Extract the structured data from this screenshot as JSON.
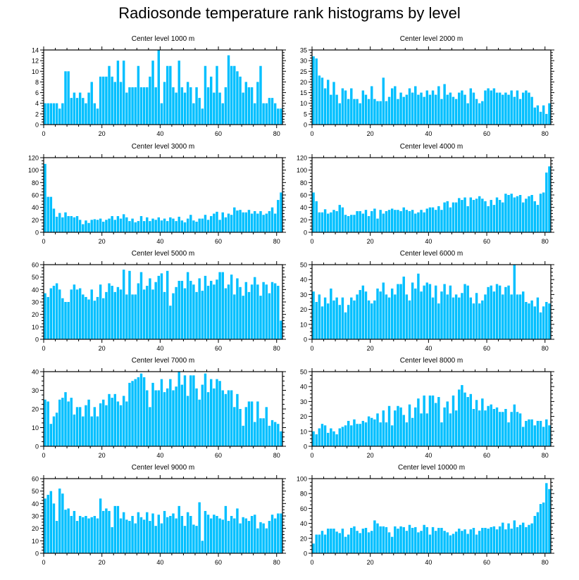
{
  "title": "Radiosonde temperature rank histograms by level",
  "colors": {
    "bar": "#00bfff",
    "frame": "#000000",
    "background": "#ffffff"
  },
  "chart_data": [
    {
      "type": "bar",
      "title": "Center level 1000 m",
      "xlim": [
        0,
        82
      ],
      "xticks": [
        0,
        20,
        40,
        60,
        80
      ],
      "ylim": [
        0,
        14
      ],
      "yticks": [
        0,
        2,
        4,
        6,
        8,
        10,
        12,
        14
      ],
      "values": [
        4,
        4,
        4,
        4,
        4,
        3,
        4,
        10,
        10,
        5,
        6,
        5,
        6,
        5,
        4,
        6,
        8,
        4,
        3,
        9,
        9,
        9,
        11,
        9,
        8,
        12,
        8,
        12,
        6,
        7,
        7,
        7,
        11,
        7,
        7,
        7,
        9,
        12,
        7,
        14,
        4,
        8,
        11,
        11,
        7,
        6,
        12,
        7,
        6,
        8,
        7,
        4,
        7,
        5,
        3,
        11,
        7,
        9,
        6,
        11,
        6,
        4,
        7,
        13,
        11,
        11,
        10,
        9,
        6,
        8,
        7,
        7,
        4,
        8,
        11,
        4,
        4,
        5,
        5,
        4,
        3,
        3
      ]
    },
    {
      "type": "bar",
      "title": "Center level 2000 m",
      "xlim": [
        0,
        82
      ],
      "xticks": [
        0,
        20,
        40,
        60,
        80
      ],
      "ylim": [
        0,
        35
      ],
      "yticks": [
        0,
        5,
        10,
        15,
        20,
        25,
        30,
        35
      ],
      "values": [
        32,
        31,
        23,
        22,
        17,
        21,
        14,
        20,
        14,
        10,
        17,
        16,
        12,
        17,
        12,
        12,
        10,
        16,
        14,
        12,
        18,
        12,
        11,
        11,
        22,
        11,
        13,
        17,
        18,
        12,
        15,
        13,
        14,
        17,
        15,
        18,
        14,
        15,
        13,
        16,
        14,
        16,
        14,
        18,
        12,
        19,
        14,
        15,
        13,
        12,
        15,
        16,
        14,
        10,
        17,
        15,
        12,
        10,
        11,
        16,
        17,
        16,
        17,
        15,
        15,
        14,
        15,
        14,
        16,
        13,
        16,
        12,
        15,
        16,
        15,
        13,
        8,
        9,
        6,
        9,
        5,
        10
      ]
    },
    {
      "type": "bar",
      "title": "Center level 3000 m",
      "xlim": [
        0,
        82
      ],
      "xticks": [
        0,
        20,
        40,
        60,
        80
      ],
      "ylim": [
        0,
        120
      ],
      "yticks": [
        0,
        20,
        40,
        60,
        80,
        100,
        120
      ],
      "values": [
        110,
        57,
        57,
        38,
        25,
        31,
        24,
        32,
        26,
        26,
        24,
        26,
        20,
        13,
        19,
        15,
        20,
        21,
        20,
        22,
        17,
        20,
        22,
        26,
        20,
        26,
        22,
        29,
        24,
        18,
        22,
        16,
        18,
        26,
        18,
        24,
        18,
        22,
        20,
        24,
        19,
        22,
        18,
        24,
        22,
        18,
        25,
        19,
        16,
        22,
        28,
        19,
        17,
        22,
        22,
        28,
        20,
        26,
        30,
        33,
        20,
        32,
        24,
        30,
        28,
        40,
        35,
        36,
        32,
        32,
        36,
        30,
        34,
        30,
        34,
        28,
        30,
        34,
        40,
        30,
        52,
        64
      ]
    },
    {
      "type": "bar",
      "title": "Center level 4000 m",
      "xlim": [
        0,
        82
      ],
      "xticks": [
        0,
        20,
        40,
        60,
        80
      ],
      "ylim": [
        0,
        120
      ],
      "yticks": [
        0,
        20,
        40,
        60,
        80,
        100,
        120
      ],
      "values": [
        64,
        50,
        32,
        32,
        37,
        30,
        32,
        36,
        34,
        44,
        40,
        28,
        26,
        28,
        28,
        34,
        34,
        30,
        36,
        26,
        34,
        38,
        22,
        36,
        30,
        34,
        36,
        38,
        36,
        36,
        34,
        40,
        36,
        34,
        36,
        30,
        32,
        36,
        32,
        38,
        40,
        40,
        36,
        42,
        36,
        48,
        50,
        40,
        48,
        48,
        55,
        52,
        56,
        42,
        56,
        52,
        54,
        58,
        54,
        50,
        42,
        52,
        44,
        56,
        52,
        48,
        62,
        60,
        62,
        56,
        58,
        60,
        48,
        54,
        58,
        60,
        50,
        44,
        62,
        64,
        96,
        106
      ]
    },
    {
      "type": "bar",
      "title": "Center level 5000 m",
      "xlim": [
        0,
        82
      ],
      "xticks": [
        0,
        20,
        40,
        60,
        80
      ],
      "ylim": [
        0,
        60
      ],
      "yticks": [
        0,
        10,
        20,
        30,
        40,
        50,
        60
      ],
      "values": [
        37,
        34,
        41,
        43,
        45,
        40,
        33,
        30,
        30,
        40,
        44,
        40,
        41,
        36,
        34,
        32,
        40,
        31,
        34,
        44,
        33,
        38,
        45,
        43,
        38,
        42,
        40,
        56,
        36,
        55,
        36,
        36,
        45,
        54,
        40,
        43,
        49,
        40,
        46,
        51,
        53,
        38,
        55,
        27,
        37,
        42,
        47,
        47,
        41,
        54,
        47,
        44,
        38,
        49,
        39,
        51,
        43,
        47,
        44,
        48,
        54,
        54,
        41,
        44,
        52,
        36,
        49,
        42,
        35,
        46,
        38,
        44,
        50,
        44,
        35,
        46,
        44,
        37,
        46,
        45,
        43,
        15
      ]
    },
    {
      "type": "bar",
      "title": "Center level 6000 m",
      "xlim": [
        0,
        82
      ],
      "xticks": [
        0,
        20,
        40,
        60,
        80
      ],
      "ylim": [
        0,
        50
      ],
      "yticks": [
        0,
        10,
        20,
        30,
        40,
        50
      ],
      "values": [
        32,
        25,
        30,
        22,
        28,
        24,
        34,
        26,
        28,
        23,
        28,
        18,
        23,
        28,
        26,
        30,
        33,
        36,
        32,
        26,
        24,
        26,
        34,
        32,
        38,
        30,
        28,
        34,
        30,
        37,
        37,
        42,
        30,
        26,
        38,
        34,
        44,
        32,
        36,
        38,
        37,
        28,
        36,
        24,
        32,
        37,
        30,
        36,
        28,
        30,
        28,
        31,
        37,
        36,
        28,
        24,
        31,
        24,
        26,
        30,
        35,
        36,
        32,
        37,
        36,
        30,
        35,
        36,
        30,
        50,
        30,
        30,
        32,
        25,
        24,
        26,
        22,
        28,
        18,
        22,
        25,
        24
      ]
    },
    {
      "type": "bar",
      "title": "Center level 7000 m",
      "xlim": [
        0,
        82
      ],
      "xticks": [
        0,
        20,
        40,
        60,
        80
      ],
      "ylim": [
        0,
        40
      ],
      "yticks": [
        0,
        10,
        20,
        30,
        40
      ],
      "values": [
        25,
        24,
        12,
        16,
        18,
        25,
        26,
        29,
        24,
        26,
        17,
        21,
        21,
        16,
        22,
        25,
        16,
        21,
        16,
        23,
        25,
        22,
        28,
        26,
        28,
        24,
        22,
        27,
        24,
        34,
        35,
        36,
        37,
        39,
        37,
        30,
        21,
        34,
        30,
        30,
        36,
        29,
        31,
        36,
        30,
        32,
        40,
        33,
        38,
        27,
        38,
        38,
        31,
        25,
        33,
        39,
        29,
        36,
        31,
        36,
        35,
        30,
        28,
        30,
        30,
        21,
        28,
        20,
        11,
        21,
        24,
        24,
        13,
        24,
        15,
        15,
        21,
        11,
        14,
        13,
        12,
        8
      ]
    },
    {
      "type": "bar",
      "title": "Center level 8000 m",
      "xlim": [
        0,
        82
      ],
      "xticks": [
        0,
        20,
        40,
        60,
        80
      ],
      "ylim": [
        0,
        50
      ],
      "yticks": [
        0,
        10,
        20,
        30,
        40,
        50
      ],
      "values": [
        10,
        8,
        12,
        15,
        14,
        9,
        12,
        10,
        8,
        12,
        13,
        14,
        17,
        14,
        18,
        15,
        15,
        17,
        16,
        20,
        19,
        18,
        22,
        16,
        24,
        16,
        27,
        14,
        24,
        27,
        26,
        21,
        16,
        28,
        19,
        26,
        32,
        22,
        34,
        22,
        34,
        34,
        29,
        33,
        16,
        26,
        30,
        22,
        34,
        24,
        38,
        41,
        36,
        33,
        35,
        25,
        31,
        24,
        32,
        24,
        27,
        28,
        25,
        26,
        23,
        23,
        25,
        16,
        23,
        28,
        23,
        22,
        13,
        17,
        18,
        18,
        14,
        17,
        17,
        13,
        18,
        14
      ]
    },
    {
      "type": "bar",
      "title": "Center level 9000 m",
      "xlim": [
        0,
        82
      ],
      "xticks": [
        0,
        20,
        40,
        60,
        80
      ],
      "ylim": [
        0,
        60
      ],
      "yticks": [
        0,
        10,
        20,
        30,
        40,
        50,
        60
      ],
      "values": [
        44,
        47,
        50,
        40,
        26,
        52,
        48,
        35,
        36,
        30,
        34,
        26,
        30,
        29,
        30,
        28,
        29,
        30,
        28,
        44,
        34,
        36,
        34,
        21,
        38,
        38,
        28,
        33,
        27,
        26,
        30,
        24,
        33,
        29,
        27,
        33,
        26,
        32,
        22,
        31,
        24,
        34,
        29,
        30,
        32,
        28,
        38,
        30,
        22,
        33,
        30,
        23,
        22,
        41,
        10,
        34,
        31,
        28,
        31,
        30,
        28,
        27,
        38,
        26,
        30,
        28,
        36,
        24,
        29,
        28,
        26,
        30,
        31,
        20,
        25,
        24,
        20,
        26,
        31,
        28,
        32,
        32
      ]
    },
    {
      "type": "bar",
      "title": "Center level 10000 m",
      "xlim": [
        0,
        82
      ],
      "xticks": [
        0,
        20,
        40,
        60,
        80
      ],
      "ylim": [
        0,
        100
      ],
      "yticks": [
        0,
        20,
        40,
        60,
        80,
        100
      ],
      "values": [
        13,
        25,
        25,
        30,
        25,
        33,
        33,
        33,
        29,
        27,
        33,
        22,
        25,
        34,
        36,
        30,
        27,
        33,
        34,
        28,
        30,
        44,
        40,
        36,
        36,
        35,
        28,
        22,
        36,
        33,
        36,
        35,
        30,
        38,
        34,
        35,
        28,
        30,
        38,
        35,
        25,
        35,
        30,
        34,
        34,
        30,
        28,
        24,
        26,
        29,
        33,
        30,
        32,
        26,
        32,
        34,
        25,
        30,
        34,
        34,
        33,
        35,
        36,
        32,
        36,
        41,
        32,
        40,
        33,
        44,
        35,
        38,
        41,
        35,
        38,
        40,
        50,
        55,
        66,
        68,
        94,
        86
      ]
    }
  ]
}
